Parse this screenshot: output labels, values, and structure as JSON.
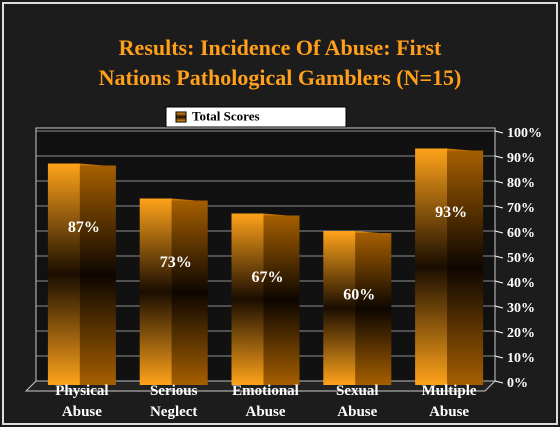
{
  "chart_data": {
    "type": "bar",
    "title": [
      "Results: Incidence Of Abuse: First",
      "Nations Pathological Gamblers (N=15)"
    ],
    "categories": [
      "Physical Abuse",
      "Serious Neglect",
      "Emotional Abuse",
      "Sexual Abuse",
      "Multiple Abuse"
    ],
    "series": [
      {
        "name": "Total Scores",
        "color": "#ff9900",
        "values": [
          87,
          73,
          67,
          60,
          93
        ],
        "value_labels": [
          "87%",
          "73%",
          "67%",
          "60%",
          "93%"
        ]
      }
    ],
    "ylim": [
      0,
      100
    ],
    "yticks": [
      {
        "value": 0,
        "label": "0%"
      },
      {
        "value": 10,
        "label": "10%"
      },
      {
        "value": 20,
        "label": "20%"
      },
      {
        "value": 30,
        "label": "30%"
      },
      {
        "value": 40,
        "label": "40%"
      },
      {
        "value": 50,
        "label": "50%"
      },
      {
        "value": 60,
        "label": "60%"
      },
      {
        "value": 70,
        "label": "70%"
      },
      {
        "value": 80,
        "label": "80%"
      },
      {
        "value": 90,
        "label": "90%"
      },
      {
        "value": 100,
        "label": "100%"
      }
    ],
    "grid": true,
    "legend": "top"
  }
}
